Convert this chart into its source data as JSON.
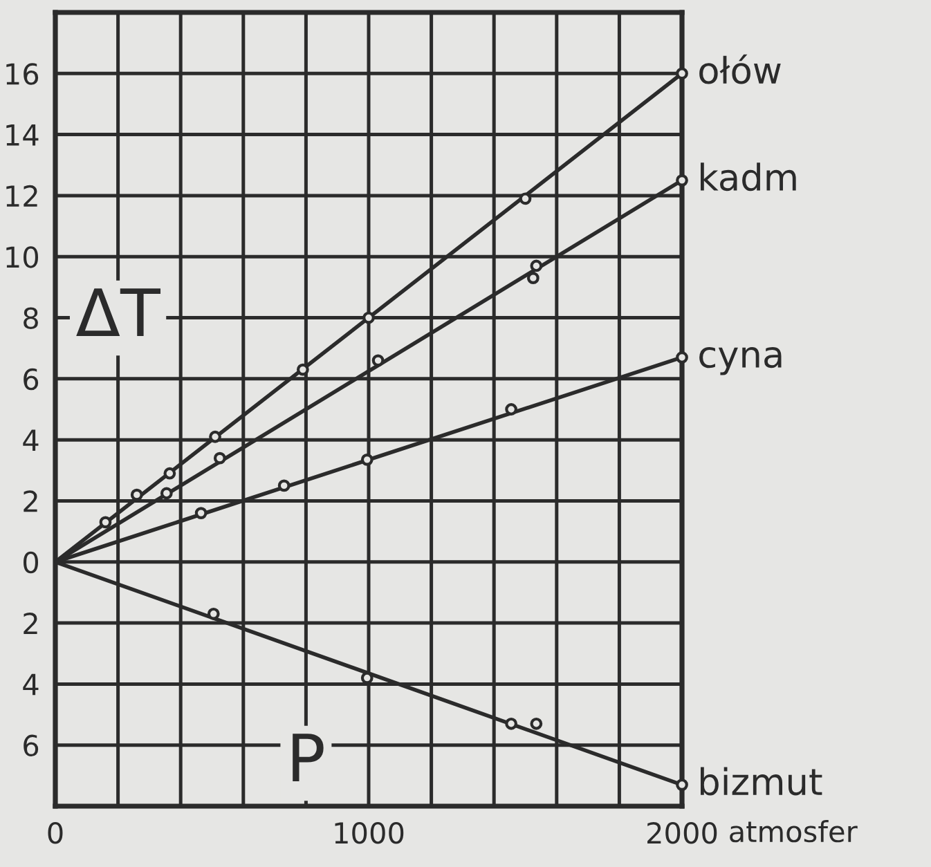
{
  "chart_data": {
    "type": "line",
    "xlabel": "P",
    "ylabel": "ΔT",
    "annotations": [
      "atmosfer"
    ],
    "xlim": [
      0,
      2000
    ],
    "ylim": [
      -8,
      18
    ],
    "xticks": [
      0,
      {
        "value": 200,
        "label": null
      },
      {
        "value": 400,
        "label": null
      },
      {
        "value": 600,
        "label": null
      },
      {
        "value": 800,
        "label": null
      },
      1000,
      {
        "value": 1200,
        "label": null
      },
      {
        "value": 1400,
        "label": null
      },
      {
        "value": 1600,
        "label": null
      },
      {
        "value": 1800,
        "label": null
      },
      2000
    ],
    "yticks": [
      {
        "value": -6,
        "label": "6"
      },
      {
        "value": -4,
        "label": "4"
      },
      {
        "value": -2,
        "label": "2"
      },
      0,
      2,
      4,
      6,
      8,
      10,
      12,
      14,
      16
    ],
    "grid": true,
    "marker": "circle",
    "line_style": "solid",
    "series": [
      {
        "name": "ołów",
        "marker": "none",
        "color": "#2b2b2b",
        "x": [
          0,
          2000
        ],
        "values": [
          0,
          16
        ]
      },
      {
        "name": "kadm",
        "marker": "none",
        "color": "#2b2b2b",
        "x": [
          0,
          2000
        ],
        "values": [
          0,
          12.5
        ]
      },
      {
        "name": "cyna",
        "marker": "none",
        "color": "#2b2b2b",
        "x": [
          0,
          2000
        ],
        "values": [
          0,
          6.7
        ]
      },
      {
        "name": "bizmut",
        "marker": "none",
        "color": "#2b2b2b",
        "x": [
          0,
          2000
        ],
        "values": [
          0,
          -7.3
        ]
      },
      {
        "type": "scatter",
        "color": "#2b2b2b",
        "x": [
          160,
          260,
          365,
          510,
          790,
          1000,
          1500,
          2000
        ],
        "values": [
          1.3,
          2.2,
          2.9,
          4.1,
          6.3,
          8.0,
          11.9,
          16
        ]
      },
      {
        "type": "scatter",
        "color": "#2b2b2b",
        "x": [
          355,
          525,
          1030,
          1525,
          1535,
          2000
        ],
        "values": [
          2.25,
          3.4,
          6.6,
          9.3,
          9.7,
          12.5
        ]
      },
      {
        "type": "scatter",
        "color": "#2b2b2b",
        "x": [
          465,
          730,
          995,
          1455,
          2000
        ],
        "values": [
          1.6,
          2.5,
          3.35,
          5.0,
          6.7
        ]
      },
      {
        "type": "scatter",
        "color": "#2b2b2b",
        "x": [
          505,
          995,
          1455,
          1535,
          2000
        ],
        "values": [
          -1.7,
          -3.8,
          -5.3,
          -5.3,
          -7.3
        ]
      }
    ]
  }
}
